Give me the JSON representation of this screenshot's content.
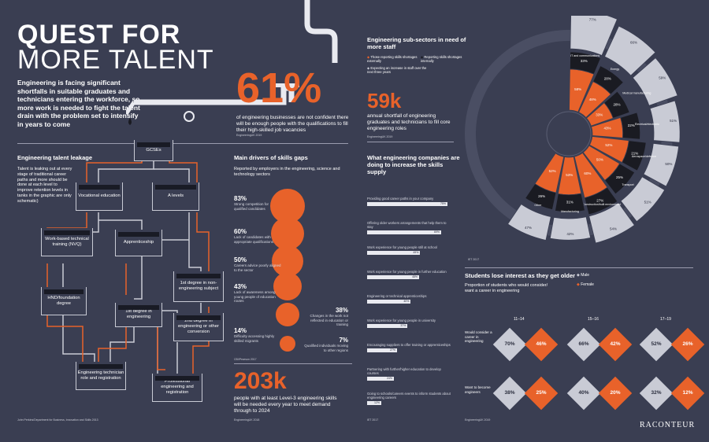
{
  "title": {
    "line1": "QUEST FOR",
    "line2": "MORE TALENT"
  },
  "intro": "Engineering is facing significant shortfalls in suitable graduates and technicians entering the workforce, so more work is needed to fight the talent drain with the problem set to intensify in years to come",
  "stat61": {
    "value": "61%",
    "text": "of engineering businesses are not confident there will be enough people with the qualifications to fill their high-skilled job vacancies",
    "source": "EngineeringUK 2019"
  },
  "stat59": {
    "value": "59k",
    "text": "annual shortfall of engineering graduates and technicians to fill core engineering roles",
    "source": "EngineeringUK 2019"
  },
  "stat203": {
    "value": "203k",
    "text": "people with at least Level-3 engineering skills will be needed every year to meet demand through to 2024",
    "source": "EngineeringUK 2018"
  },
  "leakage": {
    "heading": "Engineering talent leakage",
    "text": "Talent is leaking out at every stage of traditional career paths and more should be done at each level to improve retention levels in tanks in the graphic are only schematic)",
    "source": "John Perkins/Department for Business, Innovation and Skills 2013",
    "tanks": [
      "GCSEs",
      "Vocational education",
      "A levels",
      "Work-based technical training (NVQ)",
      "Apprenticeship",
      "1st degree in non-engineering subject",
      "HND/foundation degree",
      "1st degree in engineering",
      "2nd degree in engineering or other conversion",
      "Engineering technician role and registration",
      "Professional engineering and registration"
    ]
  },
  "drivers": {
    "heading": "Main drivers of skills gaps",
    "sub": "Reported by employers in the engineering, science and technology sectors",
    "source": "CBI/Pearson 2017",
    "items": [
      {
        "pct": "83%",
        "label": "Strong competition for qualified candidates"
      },
      {
        "pct": "60%",
        "label": "Lack of candidates with appropriate qualifications"
      },
      {
        "pct": "50%",
        "label": "Careers advice poorly aligned to the sector"
      },
      {
        "pct": "43%",
        "label": "Lack of awareness among young people of education routes"
      },
      {
        "pct": "14%",
        "label": "Difficulty accessing highly skilled migrants"
      }
    ],
    "right_items": [
      {
        "pct": "38%",
        "label": "Changes in the work not reflected in education or training"
      },
      {
        "pct": "7%",
        "label": "Qualified individuals moving to other regions"
      }
    ]
  },
  "supply": {
    "heading": "What engineering companies are doing to increase the skills supply",
    "source": "IET 2017",
    "items": [
      {
        "label": "Providing good career paths in your company",
        "value": 75,
        "text": "75%"
      },
      {
        "label": "Offering older workers arrangements that help them to stay",
        "value": 69,
        "text": "69%"
      },
      {
        "label": "Work experience for young people still at school",
        "value": 49,
        "text": "49%"
      },
      {
        "label": "Work experience for young people in further education",
        "value": 48,
        "text": "48%"
      },
      {
        "label": "Engineering or technical apprenticeships",
        "value": 40,
        "text": "40%"
      },
      {
        "label": "Work experience for young people in university",
        "value": 37,
        "text": "37%"
      },
      {
        "label": "Encouraging suppliers to offer training or apprenticeships",
        "value": 27,
        "text": "27%"
      },
      {
        "label": "Partnering with further/higher education to develop courses",
        "value": 24,
        "text": "24%"
      },
      {
        "label": "Going to schools/careers events to inform students about engineering careers",
        "value": 12,
        "text": "12%"
      }
    ]
  },
  "subsectors": {
    "heading": "Engineering sub-sectors in need of more staff",
    "legend": [
      "Those reporting skills shortages externally",
      "Reporting skills shortages internally",
      "Expecting an increase in staff over the next three years"
    ],
    "source": "IET 2017",
    "colors": {
      "orange": "#e8622a",
      "black": "#1a1b22",
      "grey": "#c9cbd5"
    },
    "sectors": [
      {
        "name": "IT and communications",
        "external": "58%",
        "internal": "33%",
        "increase": "77%"
      },
      {
        "name": "Energy",
        "external": "48%",
        "internal": "28%",
        "increase": "66%"
      },
      {
        "name": "Medical manufacturing",
        "external": "33%",
        "internal": "28%",
        "increase": "59%"
      },
      {
        "name": "Electrical/electronic",
        "external": "43%",
        "internal": "22%",
        "increase": "51%"
      },
      {
        "name": "Aerospace/defence",
        "external": "52%",
        "internal": "21%",
        "increase": "50%"
      },
      {
        "name": "Transport",
        "external": "50%",
        "internal": "25%",
        "increase": "51%"
      },
      {
        "name": "Construction/built environment",
        "external": "60%",
        "internal": "27%",
        "increase": "54%"
      },
      {
        "name": "Manufacturing",
        "external": "53%",
        "internal": "31%",
        "increase": "42%"
      },
      {
        "name": "Other",
        "external": "52%",
        "internal": "26%",
        "increase": "47%"
      }
    ]
  },
  "students": {
    "heading": "Students lose interest as they get older",
    "sub": "Proportion of students who would consider/ want a career in engineering",
    "legend": [
      "Male",
      "Female"
    ],
    "source": "EngineeringUK 2019",
    "groups": [
      "11–14",
      "15–16",
      "17–19"
    ],
    "rows": [
      {
        "label": "Would consider a career in engineering",
        "male": [
          "70%",
          "66%",
          "52%"
        ],
        "female": [
          "46%",
          "42%",
          "26%"
        ]
      },
      {
        "label": "Want to become engineers",
        "male": [
          "38%",
          "40%",
          "32%"
        ],
        "female": [
          "25%",
          "20%",
          "12%"
        ]
      }
    ]
  },
  "brand": "RACONTEUR"
}
